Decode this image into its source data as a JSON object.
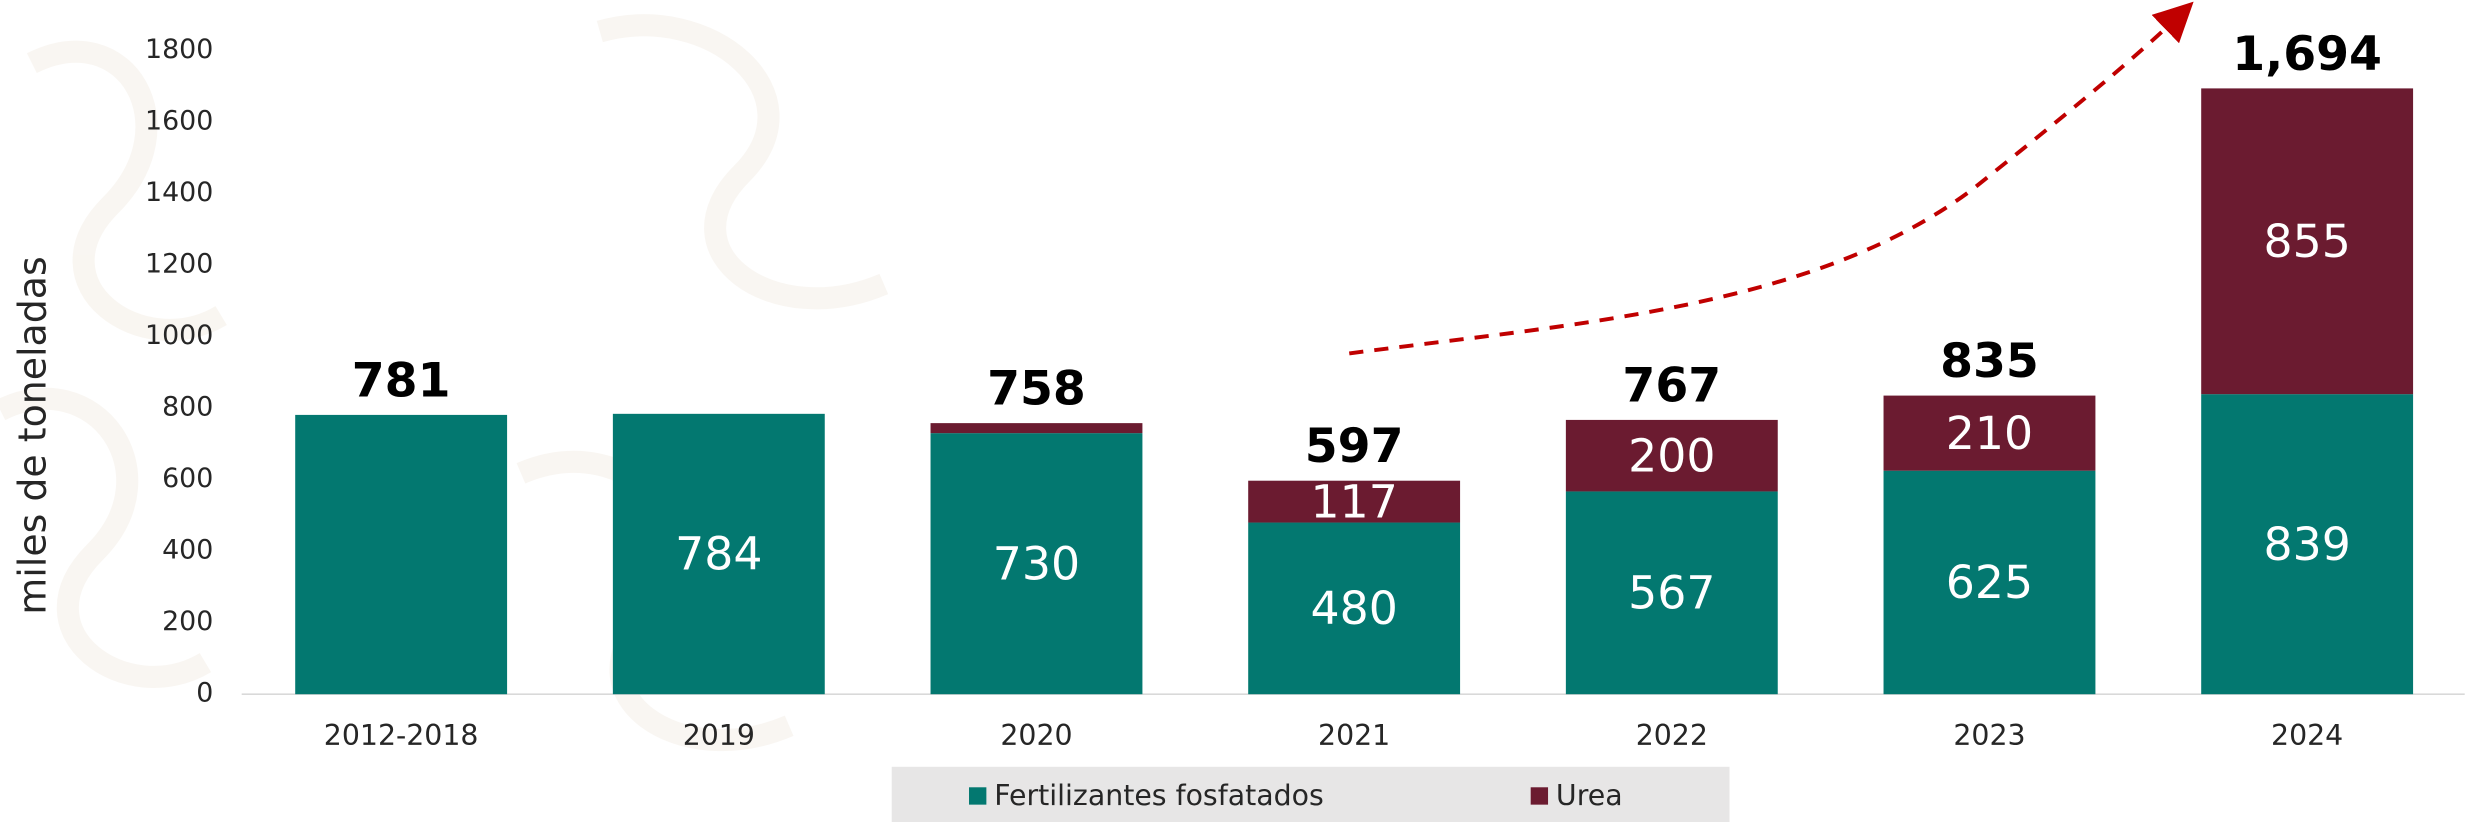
{
  "chart_data": {
    "type": "stacked_bar",
    "y_label": "miles de toneladas",
    "categories": [
      "2012-2018",
      "2019",
      "2020",
      "2021",
      "2022",
      "2023",
      "2024"
    ],
    "series": [
      {
        "name": "Fertilizantes fosfatados",
        "color": "#037870",
        "values": [
          781,
          784,
          730,
          480,
          567,
          625,
          839
        ],
        "value_labels": [
          null,
          "784",
          "730",
          "480",
          "567",
          "625",
          "839"
        ]
      },
      {
        "name": "Urea",
        "color": "#6b1b30",
        "values": [
          null,
          null,
          28,
          117,
          200,
          210,
          855
        ],
        "value_labels": [
          null,
          null,
          null,
          "117",
          "200",
          "210",
          "855"
        ]
      }
    ],
    "totals": [
      781,
      null,
      758,
      597,
      767,
      835,
      1694
    ],
    "total_labels": [
      "781",
      null,
      "758",
      "597",
      "767",
      "835",
      "1,694"
    ],
    "ylim": [
      0,
      1800
    ],
    "yticks": [
      0,
      200,
      400,
      600,
      800,
      1000,
      1200,
      1400,
      1600,
      1800
    ],
    "grid": false
  }
}
